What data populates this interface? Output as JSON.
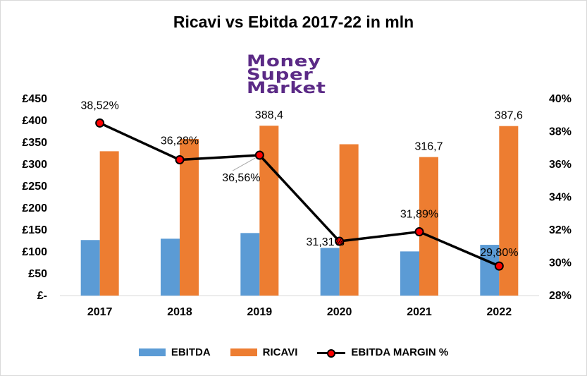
{
  "chart_data": {
    "type": "bar",
    "title": "Ricavi vs Ebitda 2017-22 in mln",
    "categories": [
      "2017",
      "2018",
      "2019",
      "2020",
      "2021",
      "2022"
    ],
    "series": [
      {
        "name": "EBITDA",
        "type": "bar",
        "axis": "left",
        "color": "#5b9bd5",
        "values": [
          127,
          130,
          143,
          109,
          101,
          116
        ]
      },
      {
        "name": "RICAVI",
        "type": "bar",
        "axis": "left",
        "color": "#ed7d31",
        "values": [
          330,
          358,
          388.4,
          346,
          316.7,
          387.6
        ],
        "data_labels": [
          "",
          "",
          "388,4",
          "",
          "316,7",
          "387,6"
        ]
      },
      {
        "name": "EBITDA MARGIN %",
        "type": "line",
        "axis": "right",
        "color": "#000000",
        "marker_color": "#ff0000",
        "values": [
          38.52,
          36.28,
          36.56,
          31.31,
          31.89,
          29.8
        ],
        "data_labels": [
          "38,52%",
          "36,28%",
          "36,56%",
          "31,31%",
          "31,89%",
          "29,80%"
        ]
      }
    ],
    "y_left": {
      "ylim": [
        0,
        450
      ],
      "ticks": [
        0,
        50,
        100,
        150,
        200,
        250,
        300,
        350,
        400,
        450
      ],
      "tick_labels": [
        "£-",
        "£50",
        "£100",
        "£150",
        "£200",
        "£250",
        "£300",
        "£350",
        "£400",
        "£450"
      ]
    },
    "y_right": {
      "ylim": [
        28,
        40
      ],
      "ticks": [
        28,
        30,
        32,
        34,
        36,
        38,
        40
      ],
      "tick_labels": [
        "28%",
        "30%",
        "32%",
        "34%",
        "36%",
        "38%",
        "40%"
      ]
    },
    "grid": false,
    "legend_position": "bottom"
  },
  "logo": {
    "lines": [
      "Money",
      "Super",
      "Market"
    ],
    "color": "#5b2a86"
  }
}
